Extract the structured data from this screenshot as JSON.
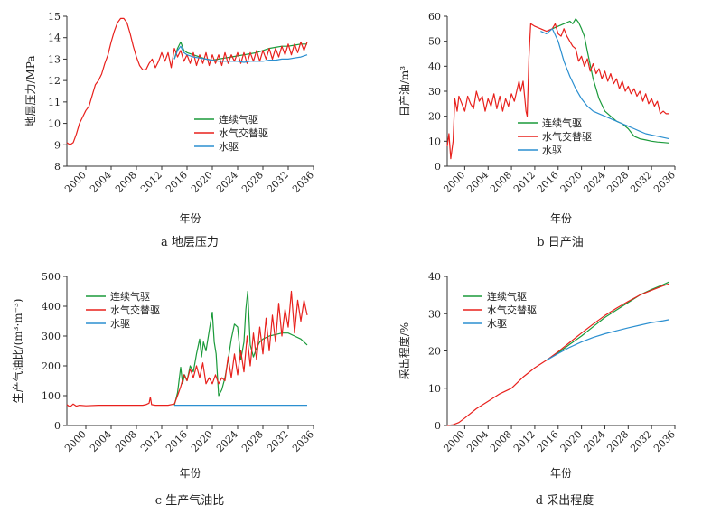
{
  "chart_data": [
    {
      "id": "pressure",
      "type": "line",
      "caption": "a  地层压力",
      "xlabel": "年份",
      "ylabel": "地层压力/MPa",
      "xlim": [
        1997,
        2036
      ],
      "ylim": [
        8,
        15
      ],
      "xticks": [
        "2000",
        "2004",
        "2008",
        "2012",
        "2016",
        "2020",
        "2024",
        "2028",
        "2032",
        "2036"
      ],
      "yticks": [
        8,
        9,
        10,
        11,
        12,
        13,
        14,
        15
      ],
      "legend_position": "lower-right",
      "series": [
        {
          "name": "连续气驱",
          "color": "#1a9a3a",
          "x": [
            2014.0,
            2014.5,
            2015.0,
            2015.5,
            2016.0,
            2017.0,
            2018.0,
            2019.0,
            2020.0,
            2021.0,
            2022.0,
            2023.0,
            2024.0,
            2025.0,
            2026.0,
            2027.0,
            2028.0,
            2029.0,
            2030.0,
            2031.0,
            2032.0,
            2033.0,
            2034.0,
            2035.0
          ],
          "y": [
            13.0,
            13.5,
            13.8,
            13.4,
            13.3,
            13.2,
            13.1,
            13.0,
            12.95,
            13.0,
            13.05,
            13.1,
            13.15,
            13.2,
            13.25,
            13.3,
            13.4,
            13.5,
            13.55,
            13.6,
            13.6,
            13.65,
            13.7,
            13.7
          ]
        },
        {
          "name": "水气交替驱",
          "color": "#e8201c",
          "x": [
            1997.0,
            1997.5,
            1998.0,
            1998.5,
            1999.0,
            2000.0,
            2000.5,
            2001.0,
            2001.5,
            2002.0,
            2002.5,
            2003.0,
            2003.5,
            2004.0,
            2004.5,
            2005.0,
            2005.5,
            2006.0,
            2006.5,
            2007.0,
            2007.5,
            2008.0,
            2008.5,
            2009.0,
            2009.5,
            2010.0,
            2010.5,
            2011.0,
            2011.5,
            2012.0,
            2012.5,
            2013.0,
            2013.5,
            2014.0,
            2014.5,
            2015.0,
            2015.5,
            2016.0,
            2016.5,
            2017.0,
            2017.5,
            2018.0,
            2018.5,
            2019.0,
            2019.5,
            2020.0,
            2020.5,
            2021.0,
            2021.5,
            2022.0,
            2022.5,
            2023.0,
            2023.5,
            2024.0,
            2024.5,
            2025.0,
            2025.5,
            2026.0,
            2026.5,
            2027.0,
            2027.5,
            2028.0,
            2028.5,
            2029.0,
            2029.5,
            2030.0,
            2030.5,
            2031.0,
            2031.5,
            2032.0,
            2032.5,
            2033.0,
            2033.5,
            2034.0,
            2034.5,
            2035.0
          ],
          "y": [
            9.1,
            9.0,
            9.1,
            9.5,
            10.0,
            10.6,
            10.8,
            11.3,
            11.8,
            12.0,
            12.3,
            12.8,
            13.2,
            13.8,
            14.3,
            14.7,
            14.9,
            14.9,
            14.7,
            14.2,
            13.6,
            13.1,
            12.7,
            12.5,
            12.5,
            12.8,
            13.0,
            12.6,
            12.9,
            13.3,
            12.9,
            13.3,
            12.6,
            13.5,
            13.1,
            13.4,
            12.9,
            13.2,
            12.8,
            13.3,
            12.7,
            13.2,
            12.8,
            13.3,
            12.7,
            13.2,
            12.8,
            13.2,
            12.7,
            13.3,
            12.8,
            13.2,
            12.9,
            13.3,
            12.8,
            13.3,
            12.8,
            13.3,
            12.9,
            13.4,
            12.9,
            13.4,
            13.0,
            13.5,
            13.0,
            13.5,
            13.1,
            13.6,
            13.2,
            13.7,
            13.2,
            13.7,
            13.3,
            13.8,
            13.4,
            13.8
          ]
        },
        {
          "name": "水驱",
          "color": "#2b8fd0",
          "x": [
            2014.0,
            2014.5,
            2015.0,
            2015.5,
            2016.0,
            2017.0,
            2018.0,
            2019.0,
            2020.0,
            2021.0,
            2022.0,
            2023.0,
            2024.0,
            2025.0,
            2026.0,
            2027.0,
            2028.0,
            2029.0,
            2030.0,
            2031.0,
            2032.0,
            2033.0,
            2034.0,
            2035.0
          ],
          "y": [
            13.0,
            13.4,
            13.6,
            13.3,
            13.2,
            13.1,
            13.05,
            13.0,
            12.95,
            12.9,
            12.9,
            12.9,
            12.9,
            12.85,
            12.9,
            12.9,
            12.9,
            12.95,
            12.95,
            13.0,
            13.0,
            13.05,
            13.1,
            13.2
          ]
        }
      ]
    },
    {
      "id": "oil",
      "type": "line",
      "caption": "b  日产油",
      "xlabel": "年份",
      "ylabel": "日产油/m³",
      "xlim": [
        1997,
        2036
      ],
      "ylim": [
        0,
        60
      ],
      "xticks": [
        "2000",
        "2004",
        "2008",
        "2012",
        "2016",
        "2020",
        "2024",
        "2028",
        "2032",
        "2036"
      ],
      "yticks": [
        0,
        10,
        20,
        30,
        40,
        50,
        60
      ],
      "legend_position": "lower-center",
      "series": [
        {
          "name": "连续气驱",
          "color": "#1a9a3a",
          "x": [
            2015.0,
            2016.0,
            2017.0,
            2017.5,
            2018.0,
            2018.5,
            2019.0,
            2019.5,
            2020.0,
            2020.5,
            2021.0,
            2022.0,
            2023.0,
            2024.0,
            2025.0,
            2026.0,
            2027.0,
            2028.0,
            2029.0,
            2030.0,
            2031.0,
            2032.0,
            2033.0,
            2034.0,
            2035.0
          ],
          "y": [
            55.0,
            56.0,
            57.0,
            57.5,
            58.0,
            57.0,
            59.0,
            57.5,
            55.0,
            52.0,
            46.0,
            35.0,
            27.0,
            22.0,
            20.0,
            18.0,
            17.0,
            15.0,
            12.0,
            11.0,
            10.5,
            10.0,
            9.7,
            9.5,
            9.3
          ]
        },
        {
          "name": "水气交替驱",
          "color": "#e8201c",
          "x": [
            1997.0,
            1997.3,
            1997.6,
            1998.0,
            1998.3,
            1998.7,
            1999.0,
            1999.5,
            2000.0,
            2000.5,
            2001.0,
            2001.5,
            2002.0,
            2002.5,
            2003.0,
            2003.5,
            2004.0,
            2004.5,
            2005.0,
            2005.5,
            2006.0,
            2006.5,
            2007.0,
            2007.5,
            2008.0,
            2008.5,
            2009.0,
            2009.3,
            2009.6,
            2010.0,
            2010.3,
            2010.5,
            2010.7,
            2011.0,
            2011.3,
            2012.0,
            2013.0,
            2014.0,
            2015.0,
            2015.5,
            2016.0,
            2016.5,
            2017.0,
            2017.5,
            2018.0,
            2018.5,
            2019.0,
            2019.5,
            2020.0,
            2020.5,
            2021.0,
            2021.5,
            2022.0,
            2022.5,
            2023.0,
            2023.5,
            2024.0,
            2024.5,
            2025.0,
            2025.5,
            2026.0,
            2026.5,
            2027.0,
            2027.5,
            2028.0,
            2028.5,
            2029.0,
            2029.5,
            2030.0,
            2030.5,
            2031.0,
            2031.5,
            2032.0,
            2032.5,
            2033.0,
            2033.5,
            2034.0,
            2034.5,
            2035.0
          ],
          "y": [
            8.0,
            13.0,
            3.0,
            10.0,
            27.0,
            22.0,
            28.0,
            25.0,
            22.0,
            28.0,
            25.0,
            23.0,
            30.0,
            26.0,
            28.0,
            22.0,
            27.0,
            24.0,
            29.0,
            23.0,
            28.0,
            22.0,
            27.0,
            24.0,
            29.0,
            26.0,
            31.0,
            34.0,
            30.0,
            34.0,
            27.0,
            22.0,
            20.0,
            44.0,
            57.0,
            56.0,
            55.0,
            54.0,
            55.0,
            57.0,
            53.0,
            52.0,
            55.0,
            52.0,
            50.0,
            48.0,
            47.0,
            42.0,
            44.0,
            40.0,
            43.0,
            38.0,
            41.0,
            37.0,
            39.0,
            35.0,
            38.0,
            34.0,
            37.0,
            33.0,
            35.0,
            31.0,
            34.0,
            30.0,
            32.0,
            29.0,
            31.0,
            28.0,
            30.0,
            26.0,
            29.0,
            25.0,
            27.0,
            24.0,
            26.0,
            21.0,
            22.0,
            21.0,
            21.0
          ]
        },
        {
          "name": "水驱",
          "color": "#2b8fd0",
          "x": [
            2013.0,
            2014.0,
            2015.0,
            2016.0,
            2017.0,
            2018.0,
            2019.0,
            2020.0,
            2021.0,
            2022.0,
            2023.0,
            2024.0,
            2025.0,
            2026.0,
            2027.0,
            2028.0,
            2029.0,
            2030.0,
            2031.0,
            2032.0,
            2033.0,
            2034.0,
            2035.0
          ],
          "y": [
            54.0,
            53.0,
            55.0,
            50.0,
            42.0,
            36.0,
            31.0,
            27.0,
            24.0,
            22.0,
            21.0,
            20.0,
            19.0,
            18.0,
            17.0,
            16.0,
            15.0,
            14.0,
            13.0,
            12.5,
            12.0,
            11.5,
            11.0
          ]
        }
      ]
    },
    {
      "id": "gor",
      "type": "line",
      "caption": "c  生产气油比",
      "xlabel": "年份",
      "ylabel": "生产气油比/(m³·m⁻³)",
      "xlim": [
        1997,
        2036
      ],
      "ylim": [
        0,
        500
      ],
      "xticks": [
        "2000",
        "2004",
        "2008",
        "2012",
        "2016",
        "2020",
        "2024",
        "2028",
        "2032",
        "2036"
      ],
      "yticks": [
        0,
        100,
        200,
        300,
        400,
        500
      ],
      "legend_position": "upper-left",
      "series": [
        {
          "name": "连续气驱",
          "color": "#1a9a3a",
          "x": [
            2014.0,
            2014.5,
            2015.0,
            2015.3,
            2015.6,
            2016.0,
            2016.5,
            2017.0,
            2017.5,
            2018.0,
            2018.3,
            2018.6,
            2019.0,
            2019.3,
            2019.6,
            2020.0,
            2020.3,
            2020.6,
            2021.0,
            2021.5,
            2022.0,
            2022.5,
            2023.0,
            2023.5,
            2024.0,
            2024.5,
            2025.0,
            2025.3,
            2025.6,
            2026.0,
            2026.5,
            2027.0,
            2027.5,
            2028.0,
            2029.0,
            2030.0,
            2031.0,
            2032.0,
            2033.0,
            2034.0,
            2035.0
          ],
          "y": [
            68.0,
            110.0,
            195.0,
            140.0,
            170.0,
            150.0,
            200.0,
            180.0,
            240.0,
            290.0,
            230.0,
            280.0,
            250.0,
            290.0,
            330.0,
            380.0,
            280.0,
            240.0,
            100.0,
            120.0,
            160.0,
            220.0,
            290.0,
            340.0,
            330.0,
            220.0,
            280.0,
            390.0,
            450.0,
            270.0,
            230.0,
            260.0,
            280.0,
            290.0,
            300.0,
            305.0,
            310.0,
            310.0,
            300.0,
            290.0,
            270.0
          ]
        },
        {
          "name": "水气交替驱",
          "color": "#e8201c",
          "x": [
            1997.0,
            1997.5,
            1998.0,
            1998.5,
            1999.0,
            2000.0,
            2002.0,
            2004.0,
            2006.0,
            2008.0,
            2009.0,
            2009.5,
            2010.0,
            2010.2,
            2010.4,
            2011.0,
            2012.0,
            2013.0,
            2014.0,
            2014.5,
            2015.0,
            2015.5,
            2016.0,
            2016.5,
            2017.0,
            2017.5,
            2018.0,
            2018.5,
            2019.0,
            2019.5,
            2020.0,
            2020.5,
            2021.0,
            2021.5,
            2022.0,
            2022.5,
            2023.0,
            2023.5,
            2024.0,
            2024.5,
            2025.0,
            2025.5,
            2026.0,
            2026.5,
            2027.0,
            2027.5,
            2028.0,
            2028.5,
            2029.0,
            2029.5,
            2030.0,
            2030.5,
            2031.0,
            2031.5,
            2032.0,
            2032.5,
            2033.0,
            2033.5,
            2034.0,
            2034.5,
            2035.0
          ],
          "y": [
            70.0,
            62.0,
            72.0,
            65.0,
            68.0,
            66.0,
            68.0,
            68.0,
            68.0,
            68.0,
            68.0,
            70.0,
            75.0,
            95.0,
            70.0,
            68.0,
            68.0,
            68.0,
            72.0,
            100.0,
            130.0,
            170.0,
            150.0,
            190.0,
            160.0,
            200.0,
            160.0,
            210.0,
            140.0,
            160.0,
            140.0,
            170.0,
            140.0,
            160.0,
            150.0,
            230.0,
            160.0,
            240.0,
            170.0,
            250.0,
            180.0,
            300.0,
            200.0,
            310.0,
            220.0,
            330.0,
            240.0,
            360.0,
            250.0,
            370.0,
            280.0,
            410.0,
            300.0,
            390.0,
            330.0,
            450.0,
            310.0,
            420.0,
            350.0,
            420.0,
            370.0
          ]
        },
        {
          "name": "水驱",
          "color": "#2b8fd0",
          "x": [
            2014.0,
            2020.0,
            2025.0,
            2030.0,
            2035.0
          ],
          "y": [
            68.0,
            68.0,
            68.0,
            68.0,
            68.0
          ]
        }
      ]
    },
    {
      "id": "recovery",
      "type": "line",
      "caption": "d  采出程度",
      "xlabel": "年份",
      "ylabel": "采出程度/%",
      "xlim": [
        1997,
        2036
      ],
      "ylim": [
        0,
        40
      ],
      "xticks": [
        "2000",
        "2004",
        "2008",
        "2012",
        "2016",
        "2020",
        "2024",
        "2028",
        "2032",
        "2036"
      ],
      "yticks": [
        0,
        10,
        20,
        30,
        40
      ],
      "legend_position": "upper-left",
      "series": [
        {
          "name": "连续气驱",
          "color": "#1a9a3a",
          "x": [
            2014.0,
            2016.0,
            2018.0,
            2020.0,
            2022.0,
            2024.0,
            2026.0,
            2028.0,
            2030.0,
            2032.0,
            2034.0,
            2035.0
          ],
          "y": [
            17.5,
            19.5,
            21.8,
            24.0,
            26.5,
            29.0,
            31.0,
            33.0,
            35.0,
            36.5,
            37.8,
            38.5
          ]
        },
        {
          "name": "水气交替驱",
          "color": "#e8201c",
          "x": [
            1997.0,
            1998.0,
            1999.0,
            2000.0,
            2002.0,
            2004.0,
            2006.0,
            2008.0,
            2010.0,
            2012.0,
            2014.0,
            2016.0,
            2018.0,
            2020.0,
            2022.0,
            2024.0,
            2026.0,
            2028.0,
            2030.0,
            2032.0,
            2034.0,
            2035.0
          ],
          "y": [
            0.0,
            0.2,
            0.8,
            2.0,
            4.5,
            6.5,
            8.5,
            10.0,
            13.0,
            15.5,
            17.5,
            19.8,
            22.3,
            24.8,
            27.2,
            29.5,
            31.5,
            33.3,
            35.0,
            36.3,
            37.5,
            38.0
          ]
        },
        {
          "name": "水驱",
          "color": "#2b8fd0",
          "x": [
            2014.0,
            2016.0,
            2018.0,
            2020.0,
            2022.0,
            2024.0,
            2026.0,
            2028.0,
            2030.0,
            2032.0,
            2034.0,
            2035.0
          ],
          "y": [
            17.5,
            19.3,
            21.0,
            22.4,
            23.6,
            24.6,
            25.4,
            26.2,
            26.9,
            27.6,
            28.1,
            28.4
          ]
        }
      ]
    }
  ]
}
